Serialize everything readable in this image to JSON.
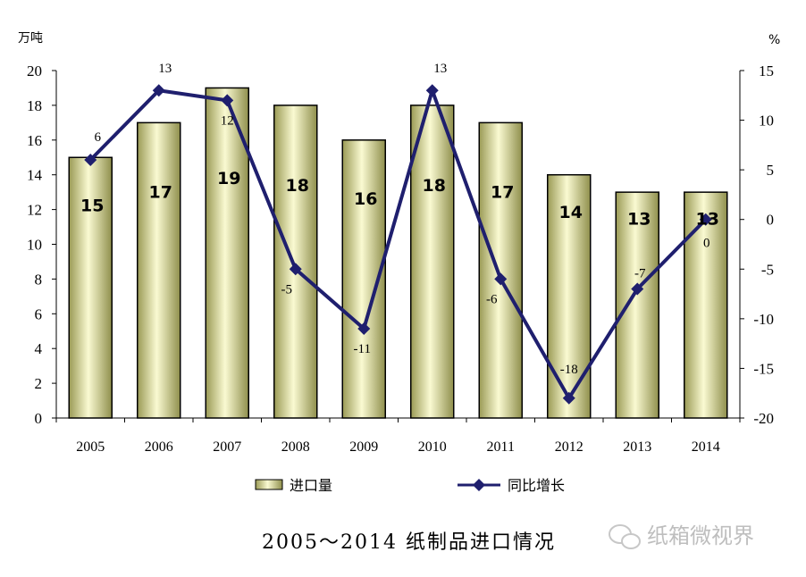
{
  "chart_data": {
    "type": "bar",
    "title": "2005～2014 纸制品进口情况",
    "categories": [
      "2005",
      "2006",
      "2007",
      "2008",
      "2009",
      "2010",
      "2011",
      "2012",
      "2013",
      "2014"
    ],
    "y_left": {
      "unit": "万吨",
      "ylim": [
        0,
        20
      ],
      "ticks": [
        "0",
        "2",
        "4",
        "6",
        "8",
        "10",
        "12",
        "14",
        "16",
        "18",
        "20"
      ]
    },
    "y_right": {
      "unit": "%",
      "ylim": [
        -20,
        15
      ],
      "ticks": [
        "-20",
        "-15",
        "-10",
        "-5",
        "0",
        "5",
        "10",
        "15"
      ]
    },
    "series": [
      {
        "name": "进口量",
        "type": "bar",
        "axis": "left",
        "color": "#e6e6a0",
        "values": [
          15,
          17,
          19,
          18,
          16,
          18,
          17,
          14,
          13,
          13
        ],
        "labels": [
          "15",
          "17",
          "19",
          "18",
          "16",
          "18",
          "17",
          "14",
          "13",
          "13"
        ]
      },
      {
        "name": "同比增长",
        "type": "line",
        "axis": "right",
        "color": "#1f1f6e",
        "values": [
          6,
          13,
          12,
          -5,
          -11,
          13,
          -6,
          -18,
          -7,
          0
        ],
        "labels": [
          "6",
          "13",
          "12",
          "-5",
          "-11",
          "13",
          "-6",
          "-18",
          "-7",
          "0"
        ]
      }
    ],
    "grid": false,
    "legend_position": "bottom"
  },
  "watermark": {
    "text": "纸箱微视界",
    "icon": "wechat-icon"
  }
}
